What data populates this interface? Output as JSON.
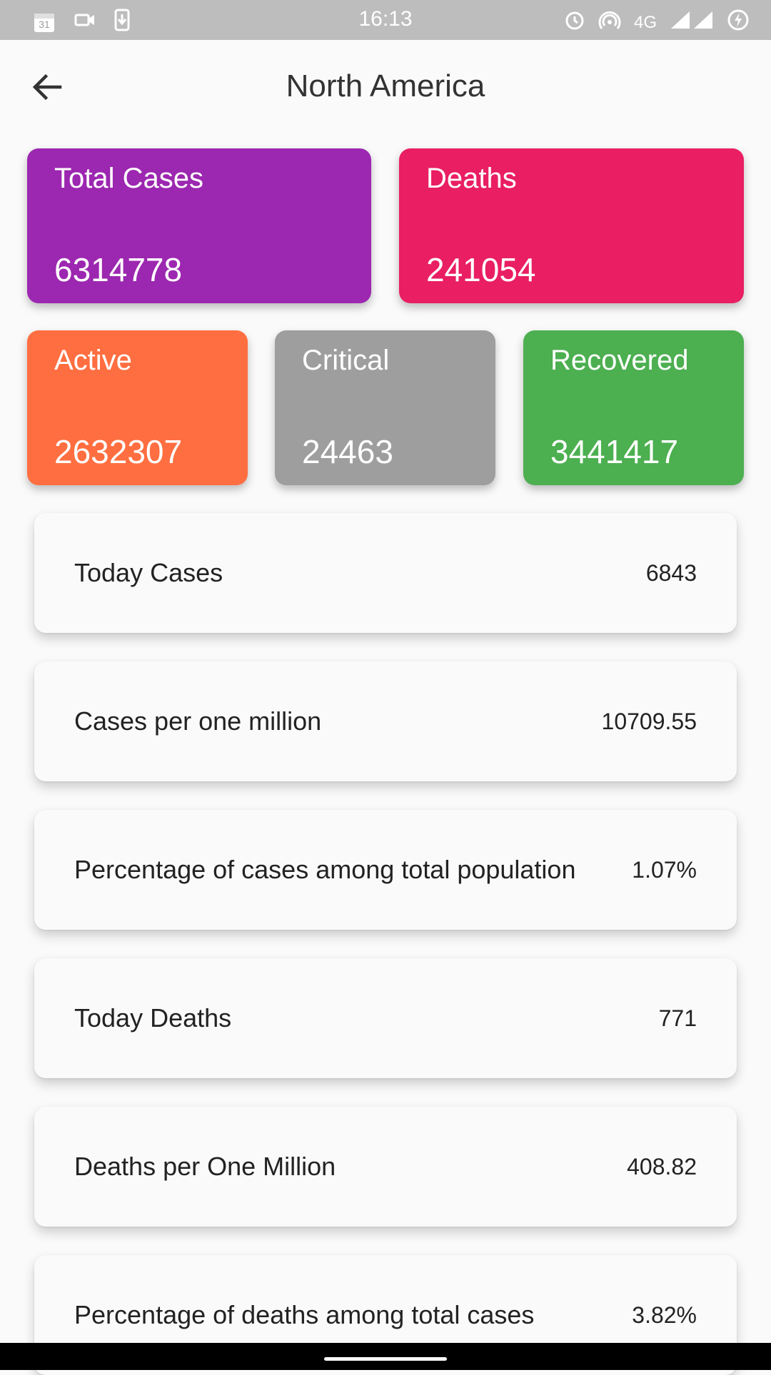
{
  "status_bar": {
    "calendar_badge": "31",
    "time": "16:13",
    "network": "4G"
  },
  "header": {
    "title": "North America"
  },
  "stats": {
    "total_cases": {
      "label": "Total Cases",
      "value": "6314778",
      "color": "#9c27b0"
    },
    "deaths": {
      "label": "Deaths",
      "value": "241054",
      "color": "#e91e63"
    },
    "active": {
      "label": "Active",
      "value": "2632307",
      "color": "#ff6e40"
    },
    "critical": {
      "label": "Critical",
      "value": "24463",
      "color": "#9e9e9e"
    },
    "recovered": {
      "label": "Recovered",
      "value": "3441417",
      "color": "#4caf50"
    }
  },
  "rows": [
    {
      "label": "Today Cases",
      "value": "6843"
    },
    {
      "label": "Cases per one million",
      "value": "10709.55"
    },
    {
      "label": "Percentage of cases among total population",
      "value": "1.07%"
    },
    {
      "label": "Today Deaths",
      "value": "771"
    },
    {
      "label": "Deaths per One Million",
      "value": "408.82"
    },
    {
      "label": "Percentage of deaths among total cases",
      "value": "3.82%"
    }
  ],
  "icons": {
    "back": "arrow-back-icon",
    "calendar": "calendar-icon",
    "video": "video-camera-icon",
    "download": "download-icon",
    "alarm": "alarm-icon",
    "hotspot": "hotspot-icon",
    "signal": "signal-icon",
    "battery": "battery-charging-icon"
  }
}
